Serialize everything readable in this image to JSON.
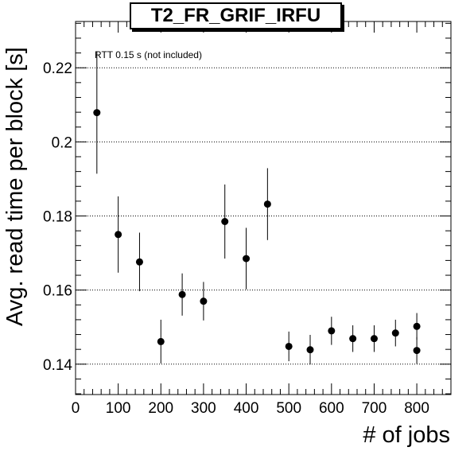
{
  "chart_data": {
    "type": "scatter",
    "title": "T2_FR_GRIF_IRFU",
    "xlabel": "# of jobs",
    "ylabel": "Avg. read time per block [s]",
    "annotation": "RTT 0.15 s (not included)",
    "xlim": [
      0,
      880
    ],
    "ylim": [
      0.1318,
      0.2325
    ],
    "x_ticks": [
      0,
      100,
      200,
      300,
      400,
      500,
      600,
      700,
      800
    ],
    "x_tick_labels": [
      "0",
      "100",
      "200",
      "300",
      "400",
      "500",
      "600",
      "700",
      "800"
    ],
    "y_ticks": [
      0.14,
      0.16,
      0.18,
      0.2,
      0.22
    ],
    "y_tick_labels": [
      "0.14",
      "0.16",
      "0.18",
      "0.2",
      "0.22"
    ],
    "grid": "horizontal dotted",
    "legend": "none",
    "series": [
      {
        "color": "#000000",
        "points": [
          {
            "x": 50,
            "y": 0.2079,
            "err": 0.0165
          },
          {
            "x": 100,
            "y": 0.175,
            "err": 0.0103
          },
          {
            "x": 150,
            "y": 0.1676,
            "err": 0.0079
          },
          {
            "x": 200,
            "y": 0.1461,
            "err": 0.0059
          },
          {
            "x": 250,
            "y": 0.1588,
            "err": 0.0057
          },
          {
            "x": 300,
            "y": 0.157,
            "err": 0.0052
          },
          {
            "x": 350,
            "y": 0.1785,
            "err": 0.01
          },
          {
            "x": 400,
            "y": 0.1685,
            "err": 0.0083
          },
          {
            "x": 450,
            "y": 0.1832,
            "err": 0.0097
          },
          {
            "x": 500,
            "y": 0.1448,
            "err": 0.004
          },
          {
            "x": 550,
            "y": 0.1439,
            "err": 0.004
          },
          {
            "x": 600,
            "y": 0.149,
            "err": 0.0038
          },
          {
            "x": 650,
            "y": 0.1469,
            "err": 0.0036
          },
          {
            "x": 700,
            "y": 0.1469,
            "err": 0.0036
          },
          {
            "x": 750,
            "y": 0.1484,
            "err": 0.0036
          },
          {
            "x": 800,
            "y": 0.1502,
            "err": 0.0036
          },
          {
            "x": 800,
            "y": 0.1437,
            "err": 0.0036
          }
        ]
      }
    ]
  }
}
